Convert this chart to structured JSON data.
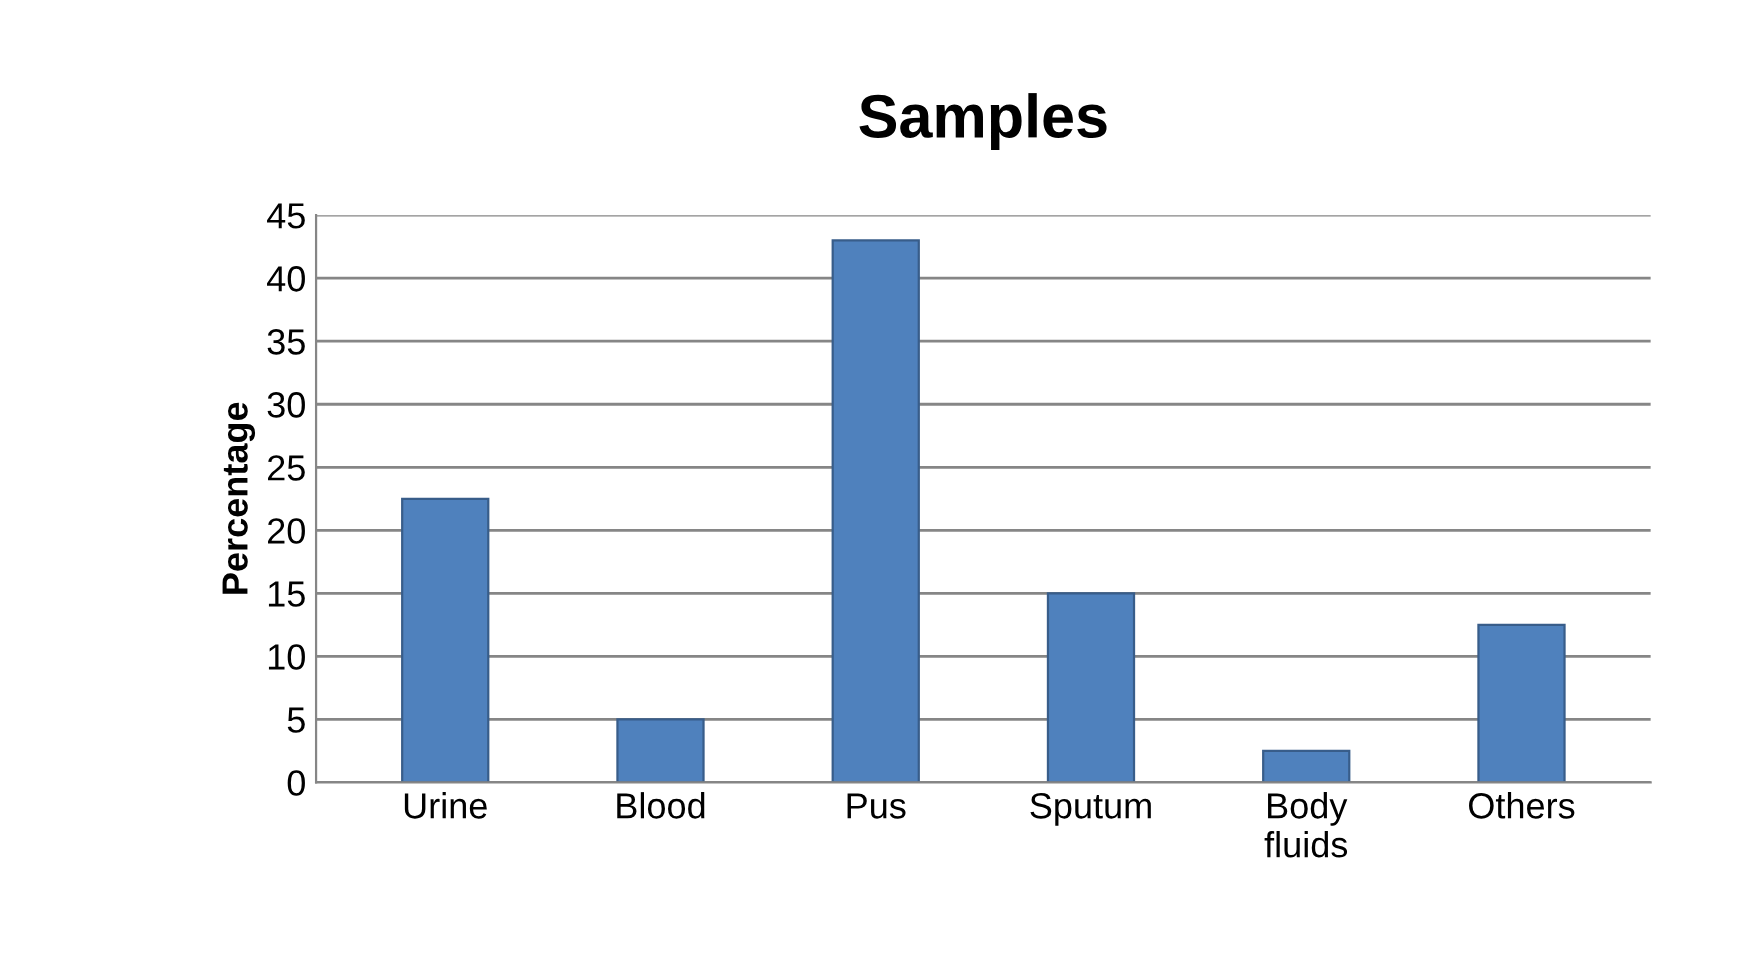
{
  "chart_data": {
    "type": "bar",
    "title": "Samples",
    "ylabel": "Percentage",
    "categories": [
      "Urine",
      "Blood",
      "Pus",
      "Sputum",
      "Body\nfluids",
      "Others"
    ],
    "values": [
      22.5,
      5,
      43,
      15,
      2.5,
      12.5
    ],
    "color": "#4f81bd",
    "ylim": [
      0,
      45
    ],
    "yticks": [
      0,
      5,
      10,
      15,
      20,
      25,
      30,
      35,
      40,
      45
    ],
    "grid": "y"
  }
}
